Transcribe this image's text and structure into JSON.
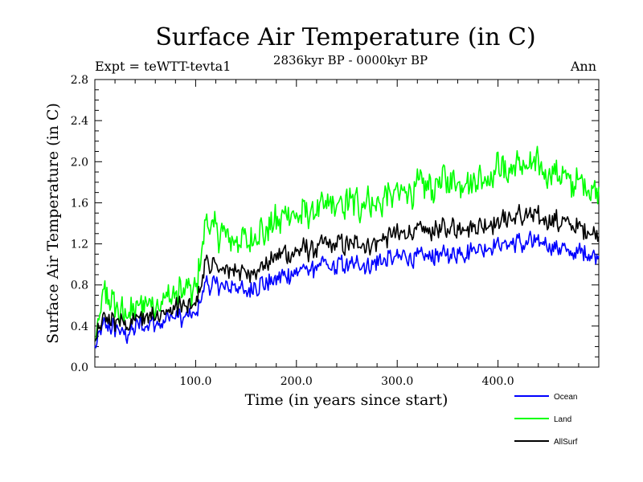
{
  "chart_data": {
    "type": "line",
    "title": "Surface Air Temperature (in C)",
    "subtitle": "2836kyr BP - 0000kyr BP",
    "expt_label": "Expt = teWTT-tevta1",
    "season_label": "Ann",
    "xlabel": "Time (in years since start)",
    "ylabel": "Surface Air Temperature (in C)",
    "xlim": [
      0,
      500
    ],
    "ylim": [
      0.0,
      2.8
    ],
    "x_ticks": [
      {
        "value": 100,
        "label": "100.0"
      },
      {
        "value": 200,
        "label": "200.0"
      },
      {
        "value": 300,
        "label": "300.0"
      },
      {
        "value": 400,
        "label": "400.0"
      }
    ],
    "y_ticks": [
      {
        "value": 0.0,
        "label": "0.0"
      },
      {
        "value": 0.4,
        "label": "0.4"
      },
      {
        "value": 0.8,
        "label": "0.8"
      },
      {
        "value": 1.2,
        "label": "1.2"
      },
      {
        "value": 1.6,
        "label": "1.6"
      },
      {
        "value": 2.0,
        "label": "2.0"
      },
      {
        "value": 2.4,
        "label": "2.4"
      },
      {
        "value": 2.8,
        "label": "2.8"
      }
    ],
    "legend_position": "bottom-right",
    "series": [
      {
        "name": "Ocean",
        "color": "#0000ff",
        "x": [
          0,
          10,
          20,
          30,
          40,
          50,
          60,
          70,
          80,
          90,
          100,
          110,
          120,
          130,
          140,
          150,
          160,
          170,
          180,
          190,
          200,
          225,
          250,
          275,
          300,
          325,
          350,
          375,
          400,
          425,
          450,
          475,
          500
        ],
        "values": [
          0.18,
          0.42,
          0.38,
          0.3,
          0.4,
          0.42,
          0.45,
          0.46,
          0.48,
          0.48,
          0.5,
          0.82,
          0.78,
          0.78,
          0.8,
          0.74,
          0.8,
          0.82,
          0.86,
          0.9,
          0.92,
          0.98,
          1.0,
          1.02,
          1.05,
          1.08,
          1.1,
          1.14,
          1.18,
          1.22,
          1.18,
          1.12,
          1.1
        ],
        "noise": 0.13
      },
      {
        "name": "Land",
        "color": "#00ff00",
        "x": [
          0,
          10,
          20,
          30,
          40,
          50,
          60,
          70,
          80,
          90,
          100,
          110,
          120,
          130,
          140,
          150,
          160,
          170,
          180,
          190,
          200,
          225,
          250,
          275,
          300,
          325,
          350,
          375,
          400,
          425,
          450,
          475,
          500
        ],
        "values": [
          0.3,
          0.7,
          0.6,
          0.5,
          0.55,
          0.6,
          0.65,
          0.68,
          0.7,
          0.72,
          0.7,
          1.4,
          1.3,
          1.28,
          1.25,
          1.2,
          1.28,
          1.35,
          1.4,
          1.45,
          1.5,
          1.55,
          1.6,
          1.62,
          1.7,
          1.75,
          1.8,
          1.85,
          1.9,
          1.95,
          1.92,
          1.8,
          1.72
        ],
        "noise": 0.22
      },
      {
        "name": "AllSurf",
        "color": "#000000",
        "x": [
          0,
          10,
          20,
          30,
          40,
          50,
          60,
          70,
          80,
          90,
          100,
          110,
          120,
          130,
          140,
          150,
          160,
          170,
          180,
          190,
          200,
          225,
          250,
          275,
          300,
          325,
          350,
          375,
          400,
          425,
          450,
          475,
          500
        ],
        "values": [
          0.22,
          0.5,
          0.45,
          0.42,
          0.47,
          0.5,
          0.53,
          0.55,
          0.57,
          0.58,
          0.58,
          1.02,
          0.96,
          0.95,
          0.96,
          0.9,
          0.98,
          1.02,
          1.05,
          1.1,
          1.12,
          1.18,
          1.2,
          1.22,
          1.28,
          1.32,
          1.34,
          1.38,
          1.42,
          1.48,
          1.44,
          1.36,
          1.32
        ],
        "noise": 0.14
      }
    ]
  }
}
